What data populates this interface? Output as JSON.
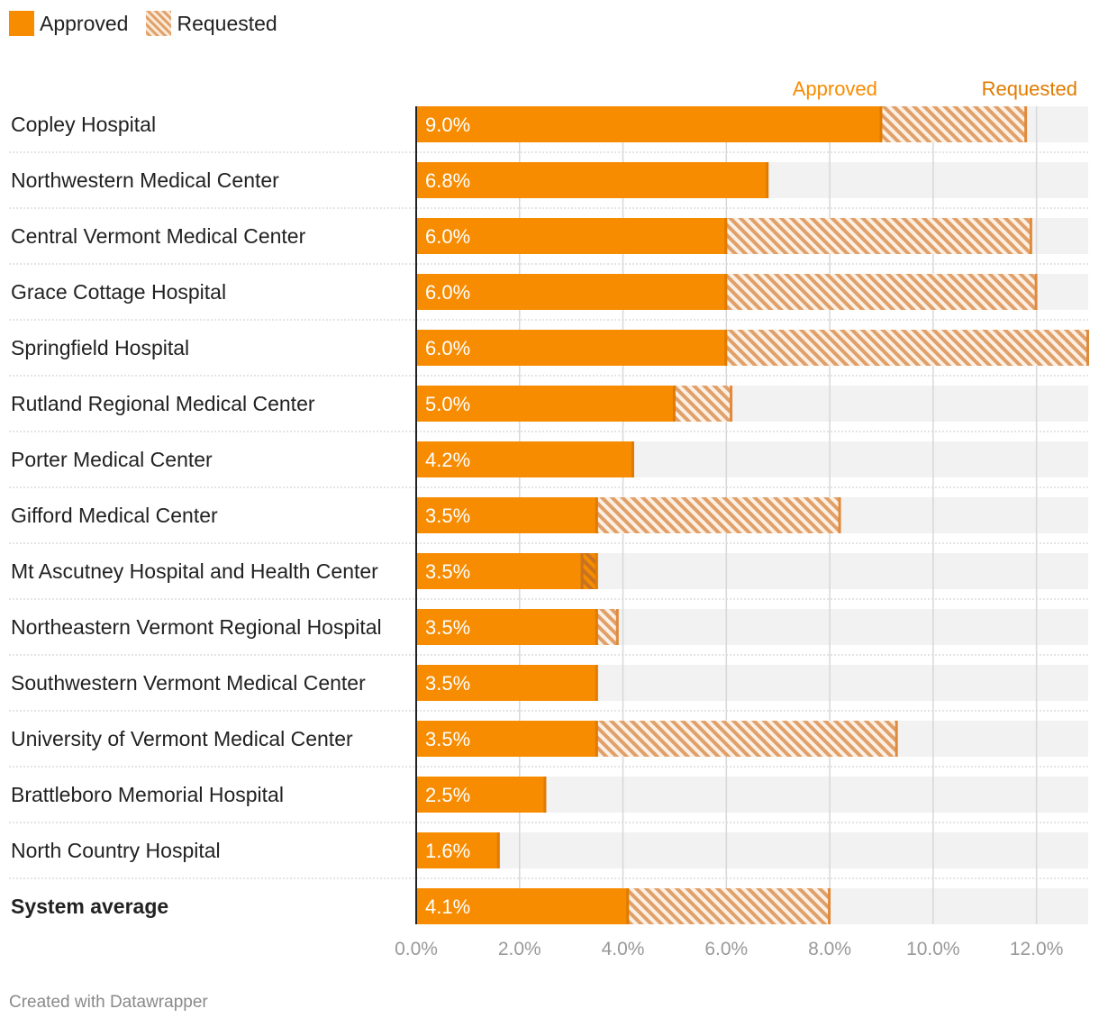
{
  "legend": {
    "approved_label": "Approved",
    "requested_label": "Requested"
  },
  "colors": {
    "approved": "#f78c00",
    "requested": "#e0a06a",
    "track": "#f2f2f2",
    "grid": "#d8d8d8",
    "axis_text": "#999999"
  },
  "chart_data": {
    "type": "bar",
    "orientation": "horizontal",
    "title": "",
    "column_header_approved": "Approved",
    "column_header_requested": "Requested",
    "xlim": [
      0,
      13
    ],
    "x_ticks": [
      0,
      2,
      4,
      6,
      8,
      10,
      12
    ],
    "x_tick_labels": [
      "0.0%",
      "2.0%",
      "4.0%",
      "6.0%",
      "8.0%",
      "10.0%",
      "12.0%"
    ],
    "categories": [
      "Copley Hospital",
      "Northwestern Medical Center",
      "Central Vermont Medical Center",
      "Grace Cottage Hospital",
      "Springfield Hospital",
      "Rutland Regional Medical Center",
      "Porter Medical Center",
      "Gifford Medical Center",
      "Mt Ascutney Hospital and Health Center",
      "Northeastern Vermont Regional Hospital",
      "Southwestern Vermont Medical Center",
      "University of Vermont Medical Center",
      "Brattleboro Memorial Hospital",
      "North Country Hospital",
      "System average"
    ],
    "bold_categories": [
      "System average"
    ],
    "series": [
      {
        "name": "Approved",
        "values": [
          9.0,
          6.8,
          6.0,
          6.0,
          6.0,
          5.0,
          4.2,
          3.5,
          3.5,
          3.5,
          3.5,
          3.5,
          2.5,
          1.6,
          4.1
        ],
        "labels": [
          "9.0%",
          "6.8%",
          "6.0%",
          "6.0%",
          "6.0%",
          "5.0%",
          "4.2%",
          "3.5%",
          "3.5%",
          "3.5%",
          "3.5%",
          "3.5%",
          "2.5%",
          "1.6%",
          "4.1%"
        ]
      },
      {
        "name": "Requested",
        "values": [
          11.8,
          6.8,
          11.9,
          12.0,
          13.0,
          6.1,
          4.2,
          8.2,
          3.2,
          3.9,
          3.5,
          9.3,
          2.5,
          1.6,
          8.0
        ]
      }
    ]
  },
  "footer": {
    "credit": "Created with Datawrapper"
  }
}
